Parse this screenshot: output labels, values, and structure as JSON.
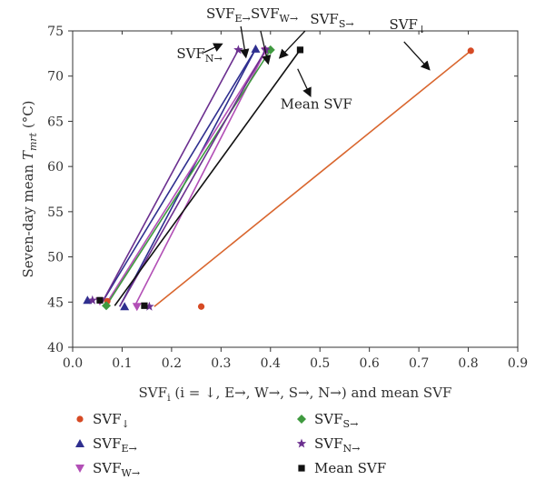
{
  "chart_data": {
    "type": "scatter",
    "xlabel": "SVF",
    "xlabel_sub": "i",
    "xlabel_rest": " (i = ↓, E→, W→, S→, N→) and mean SVF",
    "ylabel": "Seven-day mean ",
    "ylabel_var": "T",
    "ylabel_sub": "mrt",
    "ylabel_unit": " (°C)",
    "xlim": [
      0.0,
      0.9
    ],
    "ylim": [
      40,
      75
    ],
    "xticks": [
      "0.0",
      "0.1",
      "0.2",
      "0.3",
      "0.4",
      "0.5",
      "0.6",
      "0.7",
      "0.8",
      "0.9"
    ],
    "yticks": [
      "40",
      "45",
      "50",
      "55",
      "60",
      "65",
      "70",
      "75"
    ],
    "grid": false,
    "legend_position": "bottom",
    "series": [
      {
        "name": "SVF",
        "sub": "↓",
        "marker": "circle",
        "color": "#d64a24",
        "line_color": "#d9662e",
        "points": [
          [
            0.07,
            45.1
          ],
          [
            0.26,
            44.5
          ],
          [
            0.805,
            72.8
          ]
        ],
        "line": [
          [
            0.165,
            44.5
          ],
          [
            0.805,
            72.8
          ]
        ]
      },
      {
        "name": "SVF",
        "sub": "E→",
        "marker": "triangle",
        "color": "#2f2f8f",
        "line_color": "#2f2f8f",
        "points": [
          [
            0.03,
            45.2
          ],
          [
            0.105,
            44.5
          ],
          [
            0.37,
            73.0
          ]
        ],
        "lines": [
          [
            [
              0.06,
              45.0
            ],
            [
              0.37,
              73.0
            ]
          ],
          [
            [
              0.095,
              44.5
            ],
            [
              0.37,
              73.0
            ]
          ]
        ]
      },
      {
        "name": "SVF",
        "sub": "W→",
        "marker": "triangle-down",
        "color": "#b24fb6",
        "line_color": "#b24fb6",
        "points": [
          [
            0.055,
            45.1
          ],
          [
            0.13,
            44.5
          ],
          [
            0.39,
            72.8
          ]
        ],
        "lines": [
          [
            [
              0.07,
              45.0
            ],
            [
              0.39,
              72.8
            ]
          ],
          [
            [
              0.125,
              44.5
            ],
            [
              0.39,
              72.8
            ]
          ]
        ]
      },
      {
        "name": "SVF",
        "sub": "S→",
        "marker": "diamond",
        "color": "#3f9a3f",
        "line_color": "#3f9a3f",
        "points": [
          [
            0.068,
            44.6
          ],
          [
            0.4,
            72.9
          ]
        ],
        "lines": [
          [
            [
              0.068,
              44.6
            ],
            [
              0.4,
              72.9
            ]
          ]
        ]
      },
      {
        "name": "SVF",
        "sub": "N→",
        "marker": "star",
        "color": "#6b2f8f",
        "line_color": "#6b2f8f",
        "points": [
          [
            0.04,
            45.2
          ],
          [
            0.155,
            44.5
          ],
          [
            0.335,
            72.9
          ],
          [
            0.39,
            72.9
          ]
        ],
        "lines": [
          [
            [
              0.06,
              45.0
            ],
            [
              0.335,
              72.9
            ]
          ],
          [
            [
              0.095,
              44.5
            ],
            [
              0.39,
              72.9
            ]
          ]
        ]
      },
      {
        "name": "Mean SVF",
        "sub": "",
        "marker": "square",
        "color": "#111111",
        "line_color": "#111111",
        "points": [
          [
            0.055,
            45.2
          ],
          [
            0.145,
            44.6
          ],
          [
            0.46,
            72.9
          ]
        ],
        "lines": [
          [
            [
              0.085,
              44.6
            ],
            [
              0.46,
              72.9
            ]
          ]
        ]
      }
    ],
    "annotations": [
      {
        "text": "SVF",
        "sub": "↓",
        "x": 0.64,
        "y": 75.2,
        "arrow_to": [
          0.72,
          70.8
        ],
        "arrow_from": [
          0.67,
          73.8
        ]
      },
      {
        "text": "SVF",
        "sub": "E→",
        "x": 0.27,
        "y": 76.4,
        "arrow_to": [
          0.35,
          72.2
        ],
        "arrow_from": [
          0.34,
          75.5
        ]
      },
      {
        "text": "SVF",
        "sub": "W→",
        "x": 0.36,
        "y": 76.4,
        "arrow_to": [
          0.395,
          71.5
        ],
        "arrow_from": [
          0.38,
          75.0
        ]
      },
      {
        "text": "SVF",
        "sub": "S→",
        "x": 0.48,
        "y": 75.8,
        "arrow_to": [
          0.42,
          72.1
        ],
        "arrow_from": [
          0.47,
          75.0
        ]
      },
      {
        "text": "SVF",
        "sub": "N→",
        "x": 0.21,
        "y": 72.0,
        "arrow_to": [
          0.3,
          73.5
        ],
        "arrow_from": [
          0.265,
          72.6
        ]
      },
      {
        "text": "Mean SVF",
        "sub": "",
        "x": 0.42,
        "y": 66.4,
        "arrow_to": [
          0.48,
          67.9
        ],
        "arrow_from": [
          0.455,
          70.8
        ]
      }
    ]
  }
}
